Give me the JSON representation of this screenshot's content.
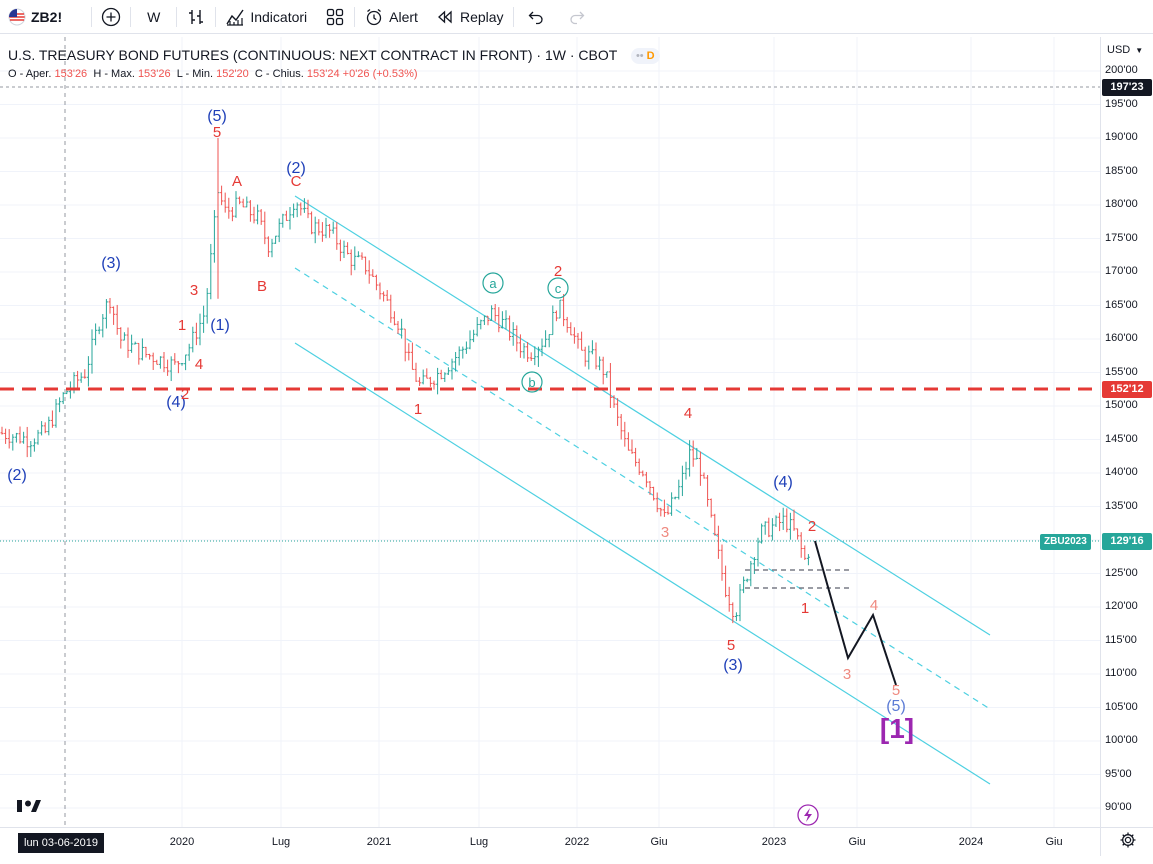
{
  "toolbar": {
    "symbol": "ZB2!",
    "interval": "W",
    "indicators_label": "Indicatori",
    "alert_label": "Alert",
    "replay_label": "Replay"
  },
  "legend": {
    "title": "U.S. TREASURY BOND FUTURES (CONTINUOUS: NEXT CONTRACT IN FRONT) · 1W · CBOT",
    "pill_dots": "••",
    "pill_flag": "D",
    "open_label": "O - Aper.",
    "open_value": "153'26",
    "high_label": "H - Max.",
    "high_value": "153'26",
    "low_label": "L - Min.",
    "low_value": "152'20",
    "close_label": "C - Chius.",
    "close_value": "153'24",
    "change_value": "+0'26 (+0.53%)"
  },
  "price_scale": {
    "currency": "USD",
    "ticks": [
      "200'00",
      "195'00",
      "190'00",
      "185'00",
      "180'00",
      "175'00",
      "170'00",
      "165'00",
      "160'00",
      "155'00",
      "150'00",
      "145'00",
      "140'00",
      "135'00",
      "130'00",
      "125'00",
      "120'00",
      "115'00",
      "110'00",
      "105'00",
      "100'00",
      "95'00",
      "90'00"
    ],
    "badge_high": "197'23",
    "badge_level": "152'12",
    "badge_last": "129'16",
    "symbol_tag": "ZBU2023"
  },
  "time_scale": {
    "cursor_date": "lun 03-06-2019",
    "ticks": [
      "2020",
      "Lug",
      "2021",
      "Lug",
      "2022",
      "Giu",
      "2023",
      "Giu",
      "2024",
      "Giu"
    ]
  },
  "wave_labels": {
    "blue": [
      "(5)",
      "(2)",
      "(3)",
      "(1)",
      "(4)",
      "(2)",
      "(4)",
      "(3)",
      "(5)"
    ],
    "red": [
      "5",
      "A",
      "C",
      "B",
      "3",
      "1",
      "4",
      "2",
      "1",
      "2",
      "4",
      "3",
      "5",
      "2",
      "1",
      "3",
      "4",
      "5"
    ],
    "circled": [
      "a",
      "c",
      "b"
    ],
    "bracket": "[1]"
  },
  "colors": {
    "up": "#26a69a",
    "down": "#ef5350",
    "channel": "#4dd0e1",
    "level_line": "#e53935",
    "wave_blue": "#1e3fb8",
    "wave_red": "#e53935",
    "bracket": "#9c27b0"
  },
  "icons": {
    "toolbar": [
      "flag-icon",
      "add-icon",
      "bars-style-icon",
      "indicators-icon",
      "templates-icon",
      "alert-icon",
      "replay-icon",
      "undo-icon",
      "redo-icon"
    ],
    "chart": [
      "tv-logo-icon",
      "lightning-icon",
      "gear-icon"
    ]
  }
}
